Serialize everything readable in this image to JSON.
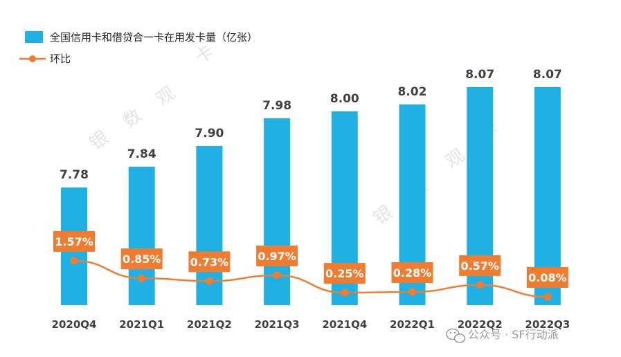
{
  "chart_data": {
    "type": "bar",
    "categories": [
      "2020Q4",
      "2021Q1",
      "2021Q2",
      "2021Q3",
      "2021Q4",
      "2022Q1",
      "2022Q2",
      "2022Q3"
    ],
    "series": [
      {
        "name": "全国信用卡和借贷合一卡在用发卡量（亿张）",
        "type": "bar",
        "values": [
          7.78,
          7.84,
          7.9,
          7.98,
          8.0,
          8.02,
          8.07,
          8.07
        ],
        "labels": [
          "7.78",
          "7.84",
          "7.90",
          "7.98",
          "8.00",
          "8.02",
          "8.07",
          "8.07"
        ]
      },
      {
        "name": "环比",
        "type": "line",
        "values": [
          1.57,
          0.85,
          0.73,
          0.97,
          0.25,
          0.28,
          0.57,
          0.08
        ],
        "labels": [
          "1.57%",
          "0.85%",
          "0.73%",
          "0.97%",
          "0.25%",
          "0.28%",
          "0.57%",
          "0.08%"
        ]
      }
    ],
    "legend_position": "top-left",
    "grid": false
  },
  "colors": {
    "bar": "#1fb1e3",
    "line": "#ee7d31",
    "label_box": "#ee7d31"
  },
  "watermark": {
    "chars": [
      "银",
      "数",
      "观",
      "卡"
    ]
  },
  "footer": {
    "source": "公众号 · SF行动派",
    "icon": "wechat-icon"
  }
}
